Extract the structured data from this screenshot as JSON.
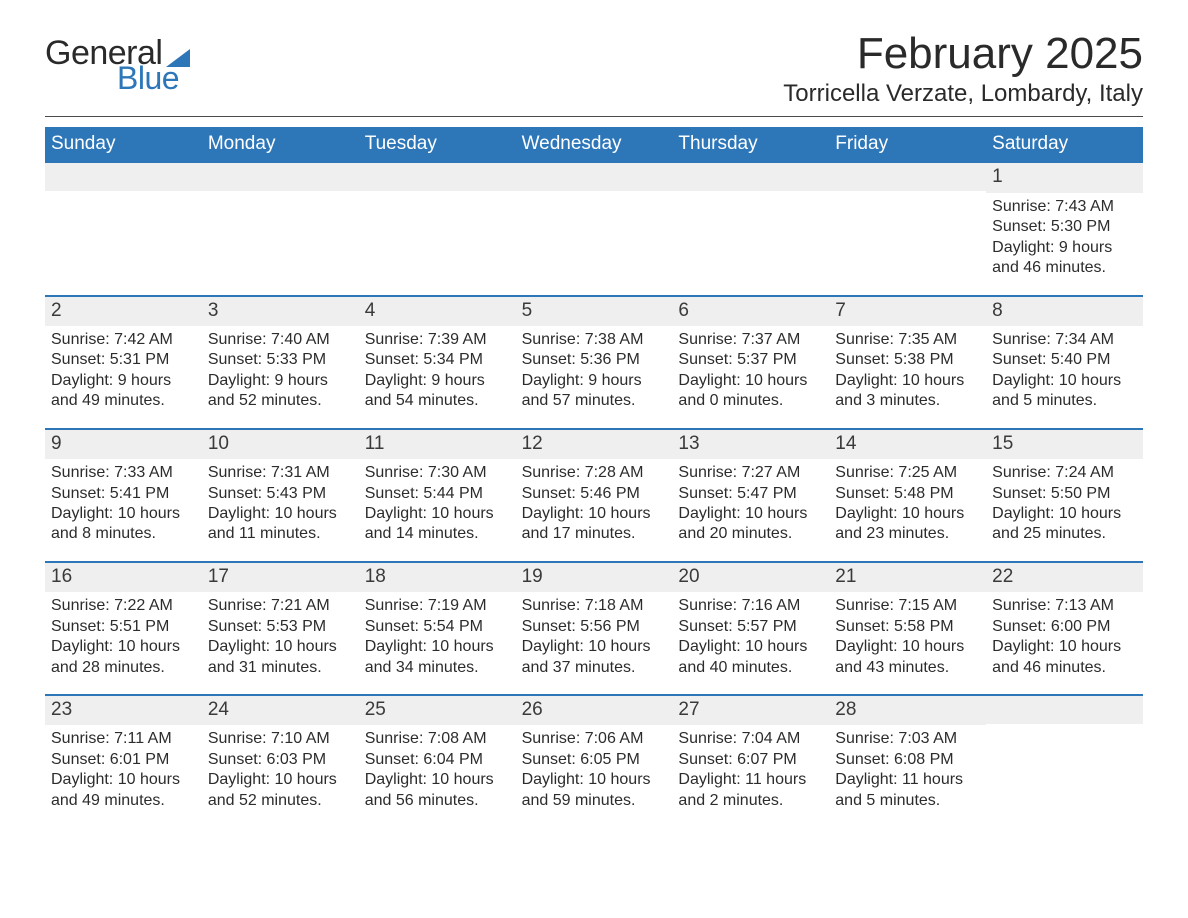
{
  "logo": {
    "line1": "General",
    "line2": "Blue"
  },
  "title": "February 2025",
  "location": "Torricella Verzate, Lombardy, Italy",
  "colors": {
    "brand": "#2d77b9",
    "strip": "#efefef",
    "text": "#2c2c2c",
    "background": "#ffffff"
  },
  "weekdays": [
    "Sunday",
    "Monday",
    "Tuesday",
    "Wednesday",
    "Thursday",
    "Friday",
    "Saturday"
  ],
  "weeks": [
    [
      {
        "day": null
      },
      {
        "day": null
      },
      {
        "day": null
      },
      {
        "day": null
      },
      {
        "day": null
      },
      {
        "day": null
      },
      {
        "day": 1,
        "sunrise": "Sunrise: 7:43 AM",
        "sunset": "Sunset: 5:30 PM",
        "daylight": "Daylight: 9 hours and 46 minutes."
      }
    ],
    [
      {
        "day": 2,
        "sunrise": "Sunrise: 7:42 AM",
        "sunset": "Sunset: 5:31 PM",
        "daylight": "Daylight: 9 hours and 49 minutes."
      },
      {
        "day": 3,
        "sunrise": "Sunrise: 7:40 AM",
        "sunset": "Sunset: 5:33 PM",
        "daylight": "Daylight: 9 hours and 52 minutes."
      },
      {
        "day": 4,
        "sunrise": "Sunrise: 7:39 AM",
        "sunset": "Sunset: 5:34 PM",
        "daylight": "Daylight: 9 hours and 54 minutes."
      },
      {
        "day": 5,
        "sunrise": "Sunrise: 7:38 AM",
        "sunset": "Sunset: 5:36 PM",
        "daylight": "Daylight: 9 hours and 57 minutes."
      },
      {
        "day": 6,
        "sunrise": "Sunrise: 7:37 AM",
        "sunset": "Sunset: 5:37 PM",
        "daylight": "Daylight: 10 hours and 0 minutes."
      },
      {
        "day": 7,
        "sunrise": "Sunrise: 7:35 AM",
        "sunset": "Sunset: 5:38 PM",
        "daylight": "Daylight: 10 hours and 3 minutes."
      },
      {
        "day": 8,
        "sunrise": "Sunrise: 7:34 AM",
        "sunset": "Sunset: 5:40 PM",
        "daylight": "Daylight: 10 hours and 5 minutes."
      }
    ],
    [
      {
        "day": 9,
        "sunrise": "Sunrise: 7:33 AM",
        "sunset": "Sunset: 5:41 PM",
        "daylight": "Daylight: 10 hours and 8 minutes."
      },
      {
        "day": 10,
        "sunrise": "Sunrise: 7:31 AM",
        "sunset": "Sunset: 5:43 PM",
        "daylight": "Daylight: 10 hours and 11 minutes."
      },
      {
        "day": 11,
        "sunrise": "Sunrise: 7:30 AM",
        "sunset": "Sunset: 5:44 PM",
        "daylight": "Daylight: 10 hours and 14 minutes."
      },
      {
        "day": 12,
        "sunrise": "Sunrise: 7:28 AM",
        "sunset": "Sunset: 5:46 PM",
        "daylight": "Daylight: 10 hours and 17 minutes."
      },
      {
        "day": 13,
        "sunrise": "Sunrise: 7:27 AM",
        "sunset": "Sunset: 5:47 PM",
        "daylight": "Daylight: 10 hours and 20 minutes."
      },
      {
        "day": 14,
        "sunrise": "Sunrise: 7:25 AM",
        "sunset": "Sunset: 5:48 PM",
        "daylight": "Daylight: 10 hours and 23 minutes."
      },
      {
        "day": 15,
        "sunrise": "Sunrise: 7:24 AM",
        "sunset": "Sunset: 5:50 PM",
        "daylight": "Daylight: 10 hours and 25 minutes."
      }
    ],
    [
      {
        "day": 16,
        "sunrise": "Sunrise: 7:22 AM",
        "sunset": "Sunset: 5:51 PM",
        "daylight": "Daylight: 10 hours and 28 minutes."
      },
      {
        "day": 17,
        "sunrise": "Sunrise: 7:21 AM",
        "sunset": "Sunset: 5:53 PM",
        "daylight": "Daylight: 10 hours and 31 minutes."
      },
      {
        "day": 18,
        "sunrise": "Sunrise: 7:19 AM",
        "sunset": "Sunset: 5:54 PM",
        "daylight": "Daylight: 10 hours and 34 minutes."
      },
      {
        "day": 19,
        "sunrise": "Sunrise: 7:18 AM",
        "sunset": "Sunset: 5:56 PM",
        "daylight": "Daylight: 10 hours and 37 minutes."
      },
      {
        "day": 20,
        "sunrise": "Sunrise: 7:16 AM",
        "sunset": "Sunset: 5:57 PM",
        "daylight": "Daylight: 10 hours and 40 minutes."
      },
      {
        "day": 21,
        "sunrise": "Sunrise: 7:15 AM",
        "sunset": "Sunset: 5:58 PM",
        "daylight": "Daylight: 10 hours and 43 minutes."
      },
      {
        "day": 22,
        "sunrise": "Sunrise: 7:13 AM",
        "sunset": "Sunset: 6:00 PM",
        "daylight": "Daylight: 10 hours and 46 minutes."
      }
    ],
    [
      {
        "day": 23,
        "sunrise": "Sunrise: 7:11 AM",
        "sunset": "Sunset: 6:01 PM",
        "daylight": "Daylight: 10 hours and 49 minutes."
      },
      {
        "day": 24,
        "sunrise": "Sunrise: 7:10 AM",
        "sunset": "Sunset: 6:03 PM",
        "daylight": "Daylight: 10 hours and 52 minutes."
      },
      {
        "day": 25,
        "sunrise": "Sunrise: 7:08 AM",
        "sunset": "Sunset: 6:04 PM",
        "daylight": "Daylight: 10 hours and 56 minutes."
      },
      {
        "day": 26,
        "sunrise": "Sunrise: 7:06 AM",
        "sunset": "Sunset: 6:05 PM",
        "daylight": "Daylight: 10 hours and 59 minutes."
      },
      {
        "day": 27,
        "sunrise": "Sunrise: 7:04 AM",
        "sunset": "Sunset: 6:07 PM",
        "daylight": "Daylight: 11 hours and 2 minutes."
      },
      {
        "day": 28,
        "sunrise": "Sunrise: 7:03 AM",
        "sunset": "Sunset: 6:08 PM",
        "daylight": "Daylight: 11 hours and 5 minutes."
      },
      {
        "day": null
      }
    ]
  ]
}
